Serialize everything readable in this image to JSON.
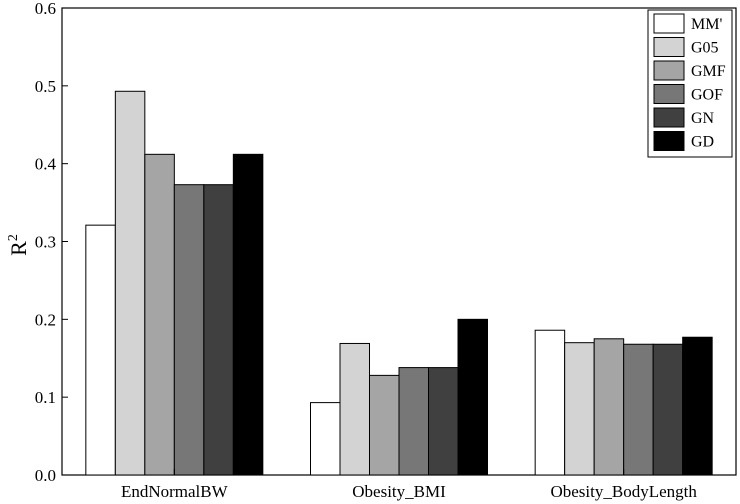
{
  "chart_data": {
    "type": "bar",
    "title": "",
    "xlabel": "",
    "ylabel": "R",
    "ylabel_superscript": "2",
    "ylim": [
      0,
      0.6
    ],
    "yticks": [
      0.0,
      0.1,
      0.2,
      0.3,
      0.4,
      0.5,
      0.6
    ],
    "ytick_labels": [
      "0.0",
      "0.1",
      "0.2",
      "0.3",
      "0.4",
      "0.5",
      "0.6"
    ],
    "categories": [
      "EndNormalBW",
      "Obesity_BMI",
      "Obesity_BodyLength"
    ],
    "series": [
      {
        "name": "MM'",
        "color": "#ffffff",
        "values": [
          0.321,
          0.093,
          0.186
        ]
      },
      {
        "name": "G05",
        "color": "#d3d3d3",
        "values": [
          0.493,
          0.169,
          0.17
        ]
      },
      {
        "name": "GMF",
        "color": "#a5a5a5",
        "values": [
          0.412,
          0.128,
          0.175
        ]
      },
      {
        "name": "GOF",
        "color": "#777777",
        "values": [
          0.373,
          0.138,
          0.168
        ]
      },
      {
        "name": "GN",
        "color": "#404040",
        "values": [
          0.373,
          0.138,
          0.168
        ]
      },
      {
        "name": "GD",
        "color": "#000000",
        "values": [
          0.412,
          0.2,
          0.177
        ]
      }
    ],
    "legend_position": "top-right",
    "grid": false
  }
}
